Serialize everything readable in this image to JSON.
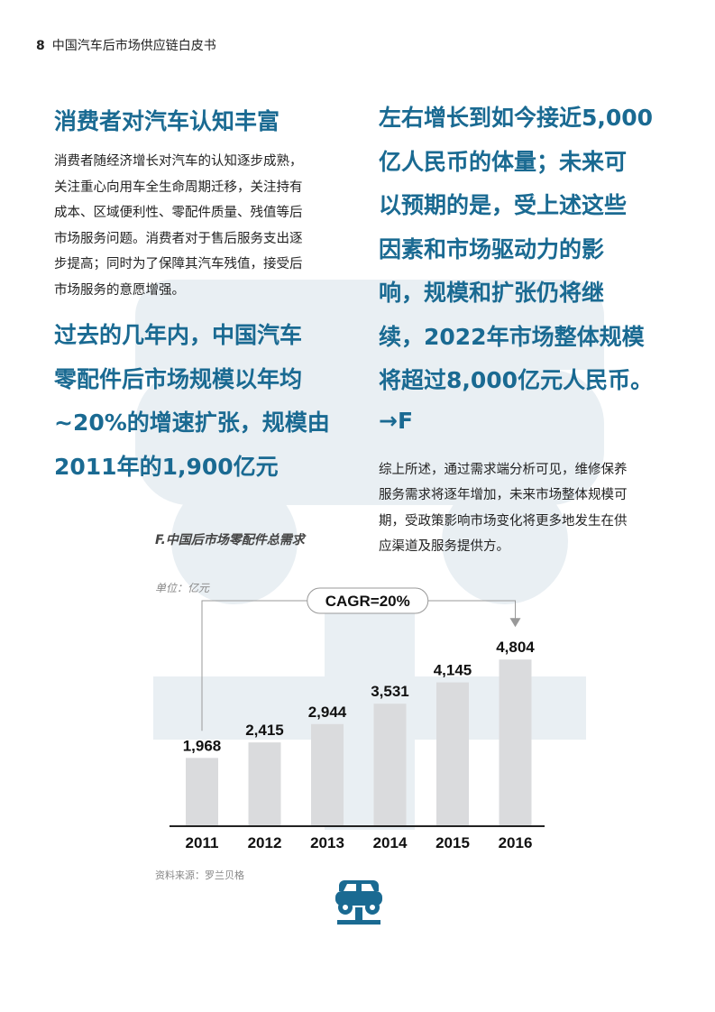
{
  "header": {
    "page_number": "8",
    "title": "中国汽车后市场供应链白皮书"
  },
  "left": {
    "heading": "消费者对汽车认知丰富",
    "paragraph_lines": [
      "消费者随经济增长对汽车的认知逐步成熟，",
      "关注重心向用车全生命周期迁移，关注持有",
      "成本、区域便利性、零配件质量、残值等后",
      "市场服务问题。消费者对于售后服务支出逐",
      "步提高；同时为了保障其汽车残值，接受后",
      "市场服务的意愿增强。"
    ],
    "pull_lines": [
      "过去的几年内，中国汽车",
      "零配件后市场规模以年均",
      "~20%的增速扩张，规模由",
      "2011年的1,900亿元"
    ]
  },
  "right": {
    "pull_lines": [
      "左右增长到如今接近5,000",
      "亿人民币的体量；未来可",
      "以预期的是，受上述这些",
      "因素和市场驱动力的影",
      "响，规模和扩张仍将继",
      "续，2022年市场整体规模",
      "将超过8,000亿元人民币。"
    ],
    "ref": "→F",
    "paragraph_lines": [
      "综上所述，通过需求端分析可见，维修保养",
      "服务需求将逐年增加，未来市场整体规模可",
      "期，受政策影响市场变化将更多地发生在供",
      "应渠道及服务提供方。"
    ]
  },
  "chart_data": {
    "type": "bar",
    "title": "F.中国后市场零配件总需求",
    "unit_label": "单位：亿元",
    "categories": [
      "2011",
      "2012",
      "2013",
      "2014",
      "2015",
      "2016"
    ],
    "values": [
      1968,
      2415,
      2944,
      3531,
      4145,
      4804
    ],
    "value_labels": [
      "1,968",
      "2,415",
      "2,944",
      "3,531",
      "4,145",
      "4,804"
    ],
    "annotation": "CAGR=20%",
    "ylim": [
      0,
      5200
    ],
    "bar_color": "#dadbdd",
    "axis_color": "#222222"
  },
  "source": "资料来源：罗兰贝格",
  "colors": {
    "accent": "#1a6a92",
    "watermark": "#e9eff3"
  },
  "icons": {
    "bottom": "car-on-lift-icon"
  }
}
